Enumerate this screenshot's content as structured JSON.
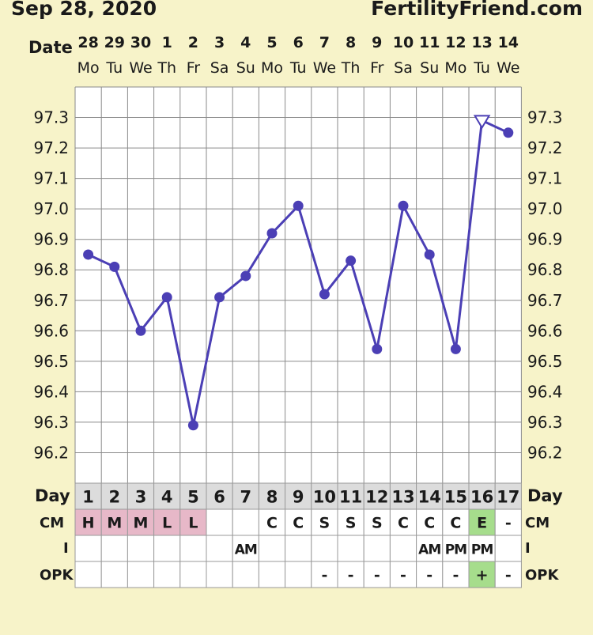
{
  "header": {
    "date_text": "Sep 28, 2020",
    "brand": "FertilityFriend.com"
  },
  "labels": {
    "date": "Date",
    "day": "Day",
    "cm": "CM",
    "intercourse": "I",
    "opk": "OPK"
  },
  "colors": {
    "background": "#f7f3c9",
    "plot_background": "#ffffff",
    "grid": "#8a8a8a",
    "line": "#4b3fb5",
    "text": "#1a1a1a",
    "day_row_background": "#dcdcdc",
    "period_cell": "#e7b8c8",
    "egg_white_cell": "#a6dd8c",
    "opk_positive_cell": "#a6dd8c"
  },
  "columns": [
    {
      "date": "28",
      "weekday": "Mo",
      "day": "1",
      "cm": "H",
      "i": "",
      "opk": ""
    },
    {
      "date": "29",
      "weekday": "Tu",
      "day": "2",
      "cm": "M",
      "i": "",
      "opk": ""
    },
    {
      "date": "30",
      "weekday": "We",
      "day": "3",
      "cm": "M",
      "i": "",
      "opk": ""
    },
    {
      "date": "1",
      "weekday": "Th",
      "day": "4",
      "cm": "L",
      "i": "",
      "opk": ""
    },
    {
      "date": "2",
      "weekday": "Fr",
      "day": "5",
      "cm": "L",
      "i": "",
      "opk": ""
    },
    {
      "date": "3",
      "weekday": "Sa",
      "day": "6",
      "cm": "",
      "i": "",
      "opk": ""
    },
    {
      "date": "4",
      "weekday": "Su",
      "day": "7",
      "cm": "",
      "i": "AM",
      "opk": ""
    },
    {
      "date": "5",
      "weekday": "Mo",
      "day": "8",
      "cm": "C",
      "i": "",
      "opk": ""
    },
    {
      "date": "6",
      "weekday": "Tu",
      "day": "9",
      "cm": "C",
      "i": "",
      "opk": ""
    },
    {
      "date": "7",
      "weekday": "We",
      "day": "10",
      "cm": "S",
      "i": "",
      "opk": "-"
    },
    {
      "date": "8",
      "weekday": "Th",
      "day": "11",
      "cm": "S",
      "i": "",
      "opk": "-"
    },
    {
      "date": "9",
      "weekday": "Fr",
      "day": "12",
      "cm": "S",
      "i": "",
      "opk": "-"
    },
    {
      "date": "10",
      "weekday": "Sa",
      "day": "13",
      "cm": "C",
      "i": "",
      "opk": "-"
    },
    {
      "date": "11",
      "weekday": "Su",
      "day": "14",
      "cm": "C",
      "i": "AM",
      "opk": "-"
    },
    {
      "date": "12",
      "weekday": "Mo",
      "day": "15",
      "cm": "C",
      "i": "PM",
      "opk": "-"
    },
    {
      "date": "13",
      "weekday": "Tu",
      "day": "16",
      "cm": "E",
      "i": "PM",
      "opk": "+"
    },
    {
      "date": "14",
      "weekday": "We",
      "day": "17",
      "cm": "-",
      "i": "",
      "opk": "-"
    }
  ],
  "chart_data": {
    "type": "line",
    "x": [
      1,
      2,
      3,
      4,
      5,
      6,
      7,
      8,
      9,
      10,
      11,
      12,
      13,
      14,
      15,
      16,
      17
    ],
    "values": [
      96.85,
      96.81,
      96.6,
      96.71,
      96.29,
      96.71,
      96.78,
      96.92,
      97.01,
      96.72,
      96.83,
      96.54,
      97.01,
      96.85,
      96.54,
      97.29,
      97.25
    ],
    "open_marker_day": 16,
    "y_ticks": [
      "96.2",
      "96.3",
      "96.4",
      "96.5",
      "96.6",
      "96.7",
      "96.8",
      "96.9",
      "97.0",
      "97.1",
      "97.2",
      "97.3"
    ],
    "ylim": [
      96.1,
      97.4
    ],
    "grid": true
  }
}
